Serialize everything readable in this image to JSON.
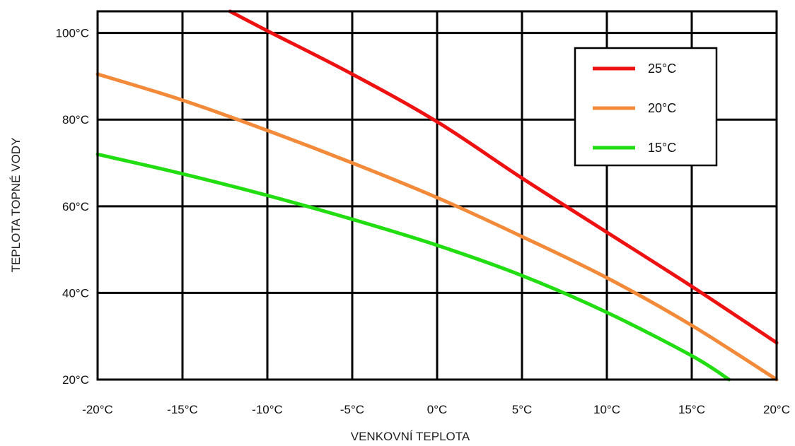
{
  "chart_data": {
    "type": "line",
    "title": "",
    "xlabel": "VENKOVNÍ TEPLOTA",
    "ylabel": "TEPLOTA TOPNÉ VODY",
    "xlim": [
      -20,
      20
    ],
    "ylim": [
      20,
      105
    ],
    "x_ticks": [
      -20,
      -15,
      -10,
      -5,
      0,
      5,
      10,
      15,
      20
    ],
    "x_tick_labels": [
      "-20°C",
      "-15°C",
      "-10°C",
      "-5°C",
      "0°C",
      "5°C",
      "10°C",
      "15°C",
      "20°C"
    ],
    "y_ticks": [
      20,
      40,
      60,
      80,
      100
    ],
    "y_tick_labels": [
      "20°C",
      "40°C",
      "60°C",
      "80°C",
      "100°C"
    ],
    "grid": true,
    "legend_position": "top-right",
    "series": [
      {
        "name": "25°C",
        "color": "#ee1111",
        "points": [
          [
            -12.2,
            105
          ],
          [
            -10,
            100.5
          ],
          [
            -5,
            90.5
          ],
          [
            0,
            79.5
          ],
          [
            5,
            66.5
          ],
          [
            10,
            54
          ],
          [
            15,
            41.5
          ],
          [
            20,
            28.5
          ]
        ]
      },
      {
        "name": "20°C",
        "color": "#f28a3a",
        "points": [
          [
            -20,
            90.5
          ],
          [
            -15,
            84.5
          ],
          [
            -10,
            77.5
          ],
          [
            -5,
            70
          ],
          [
            0,
            62
          ],
          [
            5,
            53
          ],
          [
            10,
            43.5
          ],
          [
            15,
            32.5
          ],
          [
            20,
            20
          ]
        ]
      },
      {
        "name": "15°C",
        "color": "#22dd11",
        "points": [
          [
            -20,
            72
          ],
          [
            -15,
            67.5
          ],
          [
            -10,
            62.5
          ],
          [
            -5,
            57
          ],
          [
            0,
            51
          ],
          [
            5,
            44
          ],
          [
            10,
            35.5
          ],
          [
            15,
            25.5
          ],
          [
            17.2,
            20
          ]
        ]
      }
    ]
  }
}
